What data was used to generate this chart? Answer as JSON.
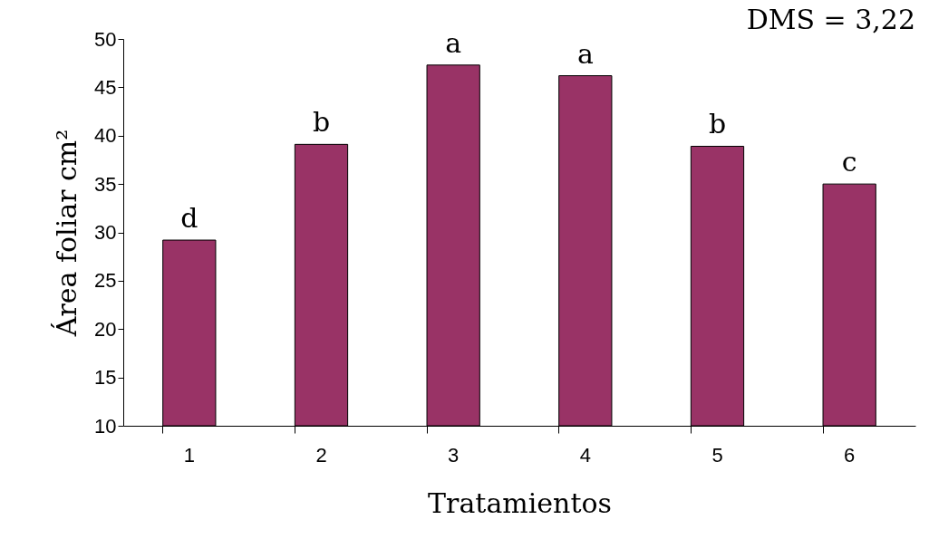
{
  "chart_data": {
    "type": "bar",
    "xlabel": "Tratamientos",
    "ylabel": "Área foliar cm²",
    "categories": [
      "1",
      "2",
      "3",
      "4",
      "5",
      "6"
    ],
    "values": [
      29.2,
      39.1,
      47.3,
      46.2,
      38.9,
      35.0
    ],
    "color": "#993366",
    "ylim": [
      10,
      50
    ],
    "yticks": [
      10,
      15,
      20,
      25,
      30,
      35,
      40,
      45,
      50
    ],
    "grid": false,
    "annotations": [
      {
        "text": "d",
        "x": "1",
        "y": 29.2
      },
      {
        "text": "b",
        "x": "2",
        "y": 39.1
      },
      {
        "text": "a",
        "x": "3",
        "y": 47.3
      },
      {
        "text": "a",
        "x": "4",
        "y": 46.2
      },
      {
        "text": "b",
        "x": "5",
        "y": 38.9
      },
      {
        "text": "c",
        "x": "6",
        "y": 35.0
      },
      "DMS = 3,22"
    ]
  }
}
